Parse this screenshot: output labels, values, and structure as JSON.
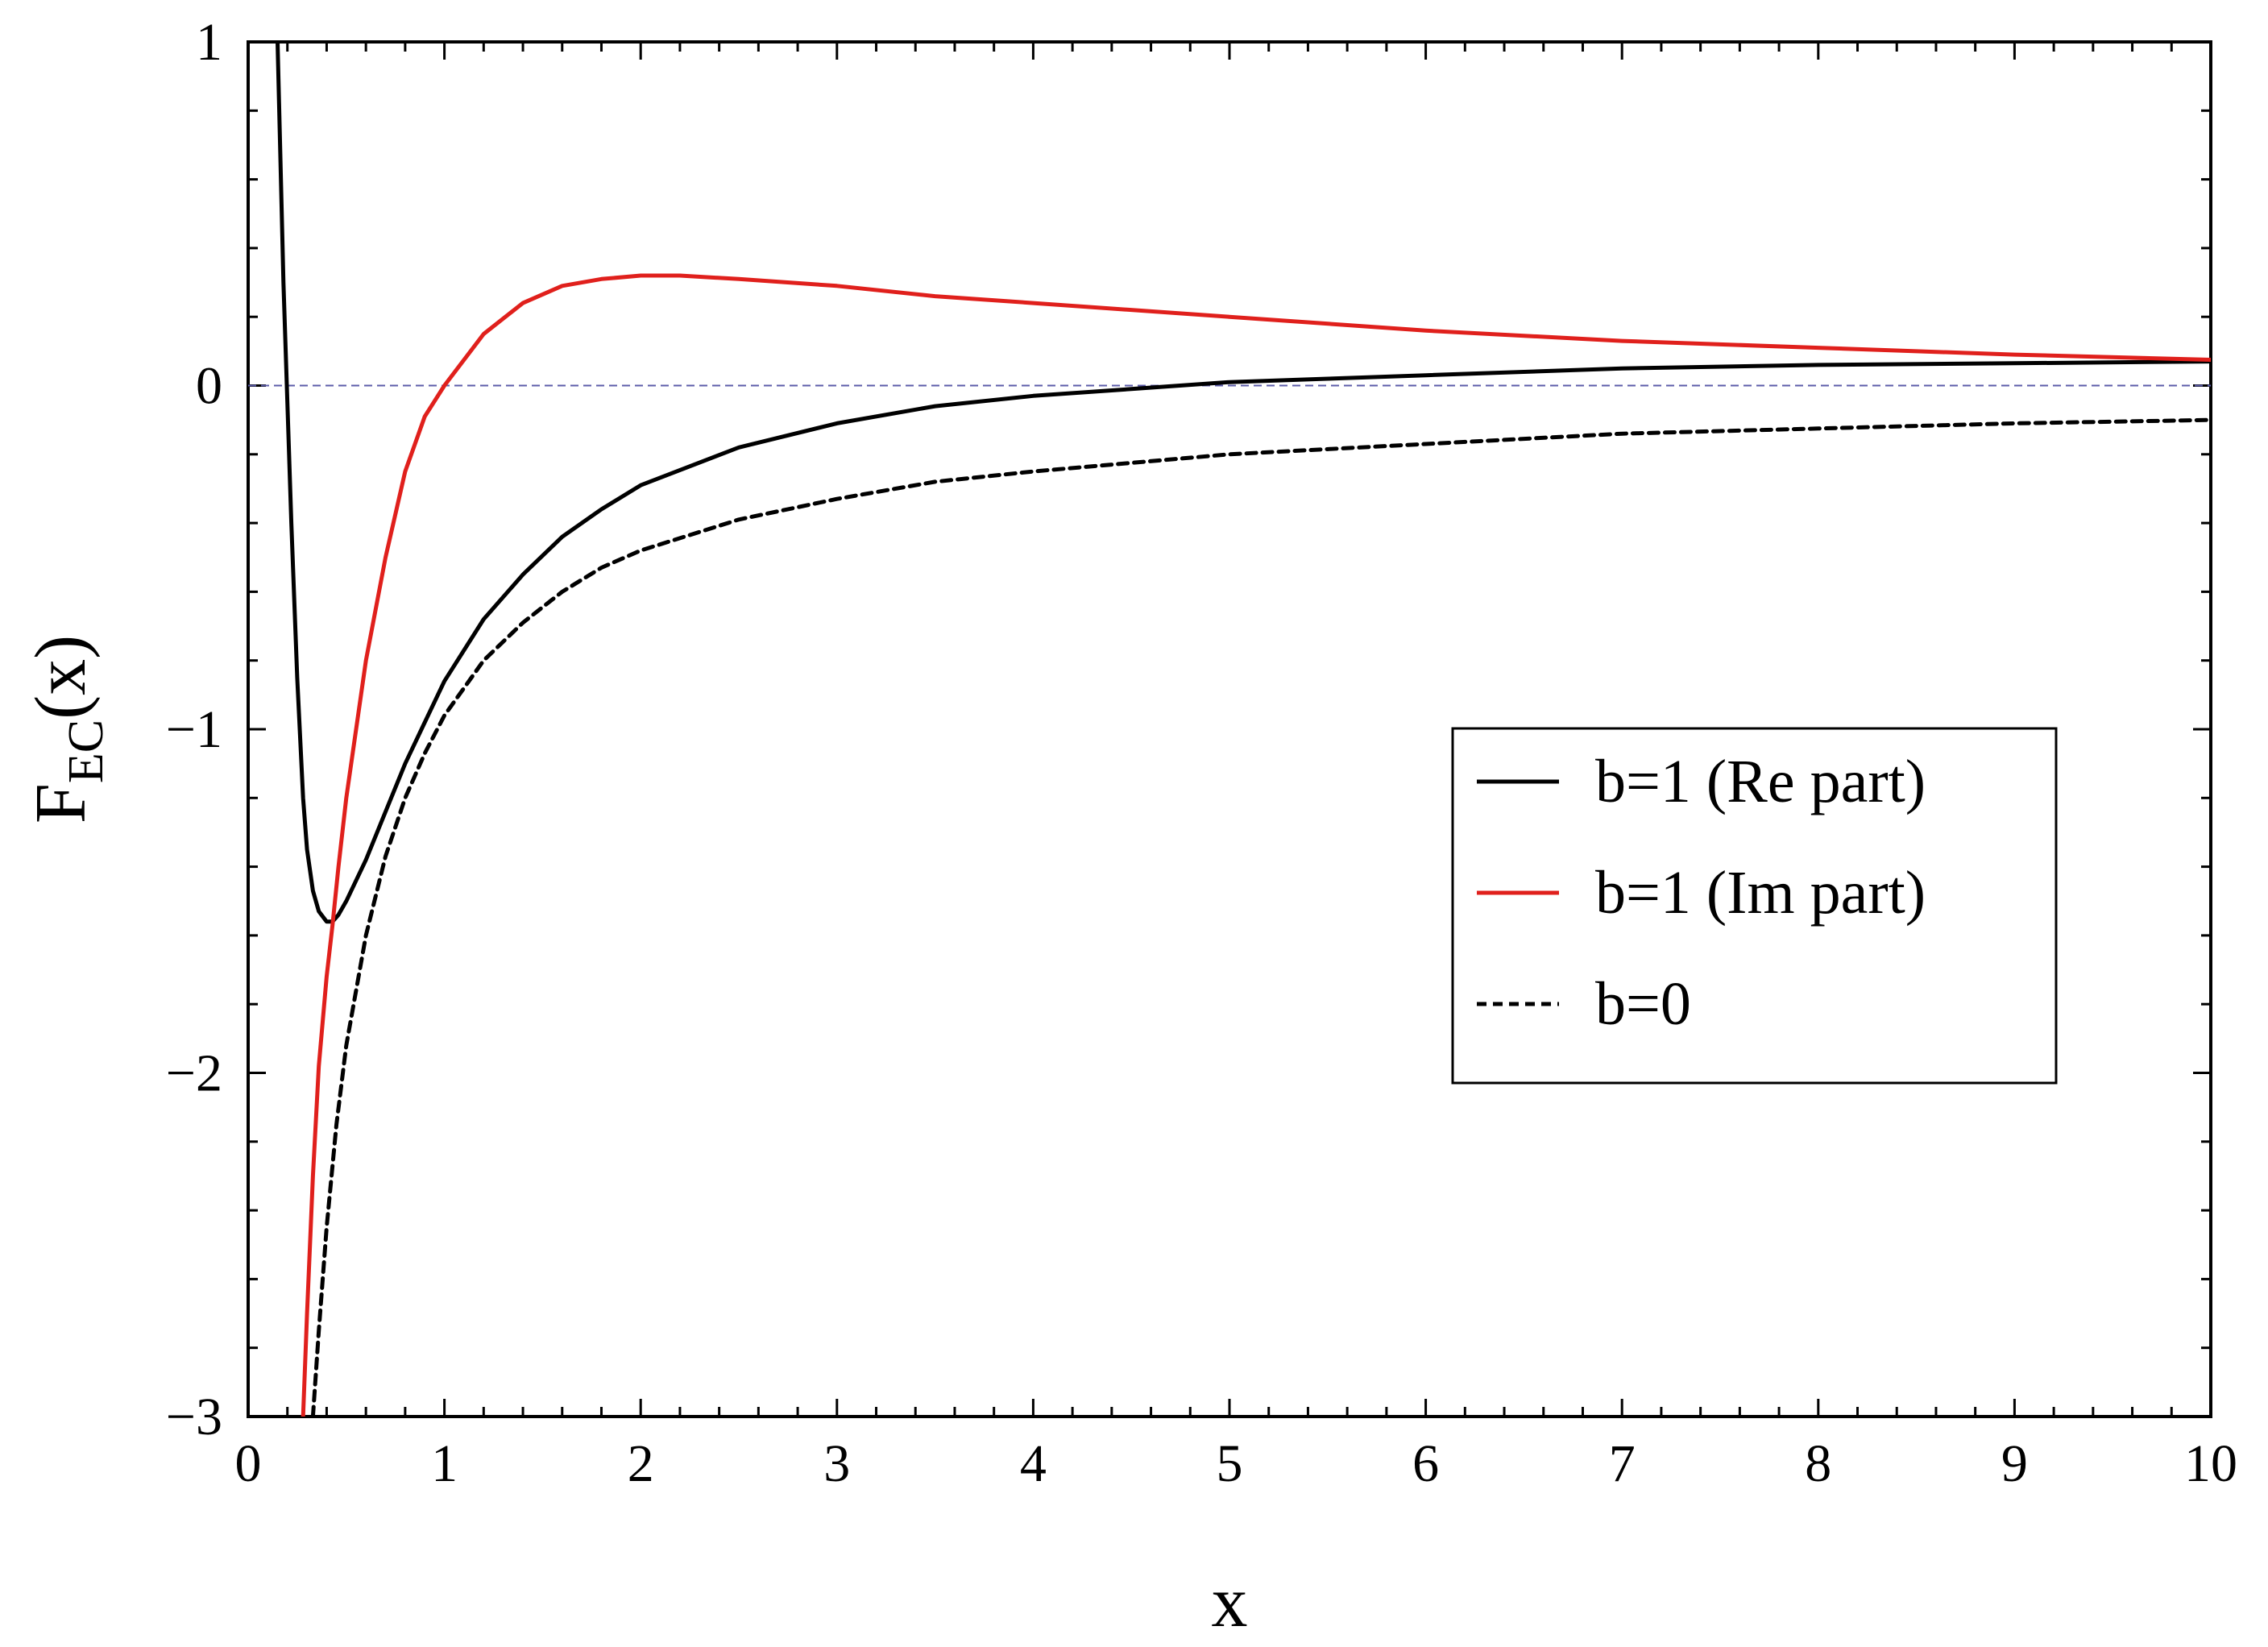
{
  "chart_data": {
    "type": "line",
    "title": "",
    "xlabel": "x",
    "ylabel": {
      "main": "F",
      "subscript": "EC",
      "suffix": "(x)"
    },
    "xlim": [
      0,
      10
    ],
    "ylim": [
      -3,
      1
    ],
    "x_ticks": [
      0,
      1,
      2,
      3,
      4,
      5,
      6,
      7,
      8,
      9,
      10
    ],
    "x_tick_labels": [
      "0",
      "1",
      "2",
      "3",
      "4",
      "5",
      "6",
      "7",
      "8",
      "9",
      "10"
    ],
    "y_ticks": [
      -3,
      -2,
      -1,
      0,
      1
    ],
    "y_tick_labels": [
      "−3",
      "−2",
      "−1",
      "0",
      "1"
    ],
    "x_minor_step": 0.2,
    "y_minor_step": 0.2,
    "grid": false,
    "reference_line": {
      "y": 0,
      "color": "#5c5caa",
      "style": "dashed"
    },
    "legend": {
      "position": "center-right",
      "entries": [
        "b=1 (Re part)",
        "b=1 (Im part)",
        "b=0"
      ]
    },
    "series": [
      {
        "name": "b=1 (Re part)",
        "color": "#000000",
        "style": "solid",
        "x": [
          0.15,
          0.18,
          0.2,
          0.22,
          0.25,
          0.28,
          0.3,
          0.33,
          0.36,
          0.4,
          0.43,
          0.46,
          0.5,
          0.6,
          0.7,
          0.8,
          0.9,
          1.0,
          1.2,
          1.4,
          1.6,
          1.8,
          2.0,
          2.5,
          3.0,
          3.5,
          4.0,
          4.5,
          5.0,
          5.5,
          6.0,
          7.0,
          8.0,
          9.0,
          10.0
        ],
        "y": [
          1.0,
          0.3,
          -0.05,
          -0.4,
          -0.85,
          -1.2,
          -1.35,
          -1.47,
          -1.53,
          -1.56,
          -1.56,
          -1.54,
          -1.5,
          -1.38,
          -1.24,
          -1.1,
          -0.98,
          -0.86,
          -0.68,
          -0.55,
          -0.44,
          -0.36,
          -0.29,
          -0.18,
          -0.11,
          -0.06,
          -0.03,
          -0.01,
          0.01,
          0.02,
          0.03,
          0.05,
          0.06,
          0.065,
          0.07
        ]
      },
      {
        "name": "b=1 (Im part)",
        "color": "#e0201c",
        "style": "solid",
        "x": [
          0.28,
          0.3,
          0.33,
          0.36,
          0.4,
          0.43,
          0.46,
          0.5,
          0.6,
          0.7,
          0.8,
          0.9,
          1.0,
          1.2,
          1.4,
          1.6,
          1.8,
          2.0,
          2.2,
          2.5,
          3.0,
          3.5,
          4.0,
          5.0,
          6.0,
          7.0,
          8.0,
          9.0,
          10.0
        ],
        "y": [
          -3.0,
          -2.7,
          -2.3,
          -1.98,
          -1.72,
          -1.57,
          -1.4,
          -1.2,
          -0.8,
          -0.5,
          -0.25,
          -0.09,
          0.0,
          0.15,
          0.24,
          0.29,
          0.31,
          0.32,
          0.32,
          0.31,
          0.29,
          0.26,
          0.24,
          0.2,
          0.16,
          0.13,
          0.11,
          0.09,
          0.075
        ]
      },
      {
        "name": "b=0",
        "color": "#000000",
        "style": "dashed",
        "x": [
          0.33,
          0.36,
          0.4,
          0.45,
          0.5,
          0.6,
          0.7,
          0.8,
          0.9,
          1.0,
          1.2,
          1.4,
          1.6,
          1.8,
          2.0,
          2.5,
          3.0,
          3.5,
          4.0,
          5.0,
          6.0,
          7.0,
          8.0,
          9.0,
          10.0
        ],
        "y": [
          -3.0,
          -2.75,
          -2.45,
          -2.15,
          -1.92,
          -1.6,
          -1.37,
          -1.2,
          -1.07,
          -0.96,
          -0.8,
          -0.69,
          -0.6,
          -0.53,
          -0.48,
          -0.39,
          -0.33,
          -0.28,
          -0.25,
          -0.2,
          -0.17,
          -0.14,
          -0.125,
          -0.11,
          -0.1
        ]
      }
    ]
  }
}
